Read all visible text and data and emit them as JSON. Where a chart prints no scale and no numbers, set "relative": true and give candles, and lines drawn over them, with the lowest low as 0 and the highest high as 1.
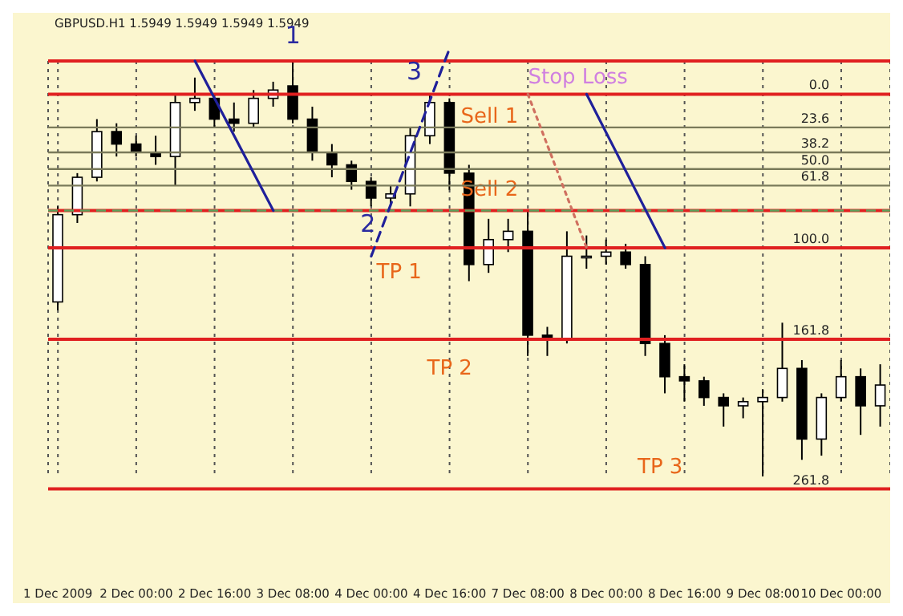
{
  "chart_data": {
    "type": "candlestick",
    "title": "GBPUSD.H1 1.5949 1.5949 1.5949 1.5949",
    "relative": true,
    "categories": [
      "1 Dec 2009",
      null,
      null,
      null,
      "2 Dec 00:00",
      null,
      null,
      null,
      "2 Dec 16:00",
      null,
      null,
      null,
      "3 Dec 08:00",
      null,
      null,
      null,
      "4 Dec 00:00",
      null,
      null,
      null,
      "4 Dec 16:00",
      null,
      null,
      null,
      "7 Dec 08:00",
      null,
      null,
      null,
      "8 Dec 00:00",
      null,
      null,
      null,
      "8 Dec 16:00",
      null,
      null,
      null,
      "9 Dec 08:00",
      null,
      null,
      null,
      "10 Dec 00:00",
      null,
      null
    ],
    "ohlc": [
      [
        0.42,
        0.65,
        0.4,
        0.63
      ],
      [
        0.63,
        0.73,
        0.61,
        0.72
      ],
      [
        0.72,
        0.86,
        0.71,
        0.83
      ],
      [
        0.83,
        0.85,
        0.77,
        0.8
      ],
      [
        0.8,
        0.82,
        0.77,
        0.78
      ],
      [
        0.78,
        0.82,
        0.75,
        0.77
      ],
      [
        0.77,
        0.92,
        0.7,
        0.9
      ],
      [
        0.9,
        0.96,
        0.88,
        0.91
      ],
      [
        0.91,
        0.92,
        0.84,
        0.86
      ],
      [
        0.86,
        0.9,
        0.83,
        0.85
      ],
      [
        0.85,
        0.93,
        0.84,
        0.91
      ],
      [
        0.91,
        0.95,
        0.89,
        0.93
      ],
      [
        0.94,
        1,
        0.85,
        0.86
      ],
      [
        0.86,
        0.89,
        0.76,
        0.78
      ],
      [
        0.78,
        0.8,
        0.72,
        0.75
      ],
      [
        0.75,
        0.76,
        0.69,
        0.71
      ],
      [
        0.71,
        0.72,
        0.65,
        0.67
      ],
      [
        0.67,
        0.7,
        0.65,
        0.68
      ],
      [
        0.68,
        0.84,
        0.65,
        0.82
      ],
      [
        0.82,
        0.92,
        0.8,
        0.9
      ],
      [
        0.9,
        0.91,
        0.69,
        0.73
      ],
      [
        0.73,
        0.75,
        0.47,
        0.51
      ],
      [
        0.51,
        0.62,
        0.49,
        0.57
      ],
      [
        0.57,
        0.62,
        0.54,
        0.59
      ],
      [
        0.59,
        0.64,
        0.29,
        0.34
      ],
      [
        0.34,
        0.36,
        0.29,
        0.33
      ],
      [
        0.33,
        0.59,
        0.32,
        0.53
      ],
      [
        0.53,
        0.58,
        0.5,
        0.53
      ],
      [
        0.53,
        0.57,
        0.51,
        0.54
      ],
      [
        0.54,
        0.56,
        0.5,
        0.51
      ],
      [
        0.51,
        0.53,
        0.29,
        0.32
      ],
      [
        0.32,
        0.34,
        0.2,
        0.24
      ],
      [
        0.24,
        0.27,
        0.18,
        0.23
      ],
      [
        0.23,
        0.24,
        0.17,
        0.19
      ],
      [
        0.19,
        0.2,
        0.12,
        0.17
      ],
      [
        0.17,
        0.19,
        0.14,
        0.18
      ],
      [
        0.18,
        0.21,
        0,
        0.19
      ],
      [
        0.19,
        0.37,
        0.18,
        0.26
      ],
      [
        0.26,
        0.28,
        0.04,
        0.09
      ],
      [
        0.09,
        0.2,
        0.05,
        0.19
      ],
      [
        0.19,
        0.28,
        0.18,
        0.24
      ],
      [
        0.24,
        0.26,
        0.1,
        0.17
      ],
      [
        0.17,
        0.27,
        0.12,
        0.22
      ]
    ],
    "ref_lines": [
      {
        "axis": "y",
        "value": 1.0,
        "label": "Stop Loss",
        "color": "#e02020"
      },
      {
        "axis": "y",
        "value": 0.92,
        "label": "Sell 1",
        "color": "#e02020"
      },
      {
        "axis": "y",
        "value": 0.64,
        "label": "Sell 2",
        "color": "#e02020"
      },
      {
        "axis": "y",
        "value": 0.55,
        "label": "TP 1",
        "color": "#e02020"
      },
      {
        "axis": "y",
        "value": 0.33,
        "label": "TP 2",
        "color": "#e02020"
      },
      {
        "axis": "y",
        "value": -0.03,
        "label": "TP 3",
        "color": "#e02020"
      },
      {
        "axis": "y",
        "value": 0.84,
        "color": "#7a7a5a"
      },
      {
        "axis": "y",
        "value": 0.78,
        "color": "#7a7a5a"
      },
      {
        "axis": "y",
        "value": 0.74,
        "color": "#7a7a5a"
      },
      {
        "axis": "y",
        "value": 0.7,
        "color": "#7a7a5a"
      },
      {
        "axis": "y",
        "value": 0.64,
        "color": "#5aa05a",
        "line_style": "dashed"
      }
    ],
    "annotations": [
      "1",
      "2",
      "3",
      "0.0",
      "23.6",
      "38.2",
      "50.0",
      "61.8",
      "100.0",
      "161.8",
      "261.8"
    ],
    "grid": "x"
  }
}
